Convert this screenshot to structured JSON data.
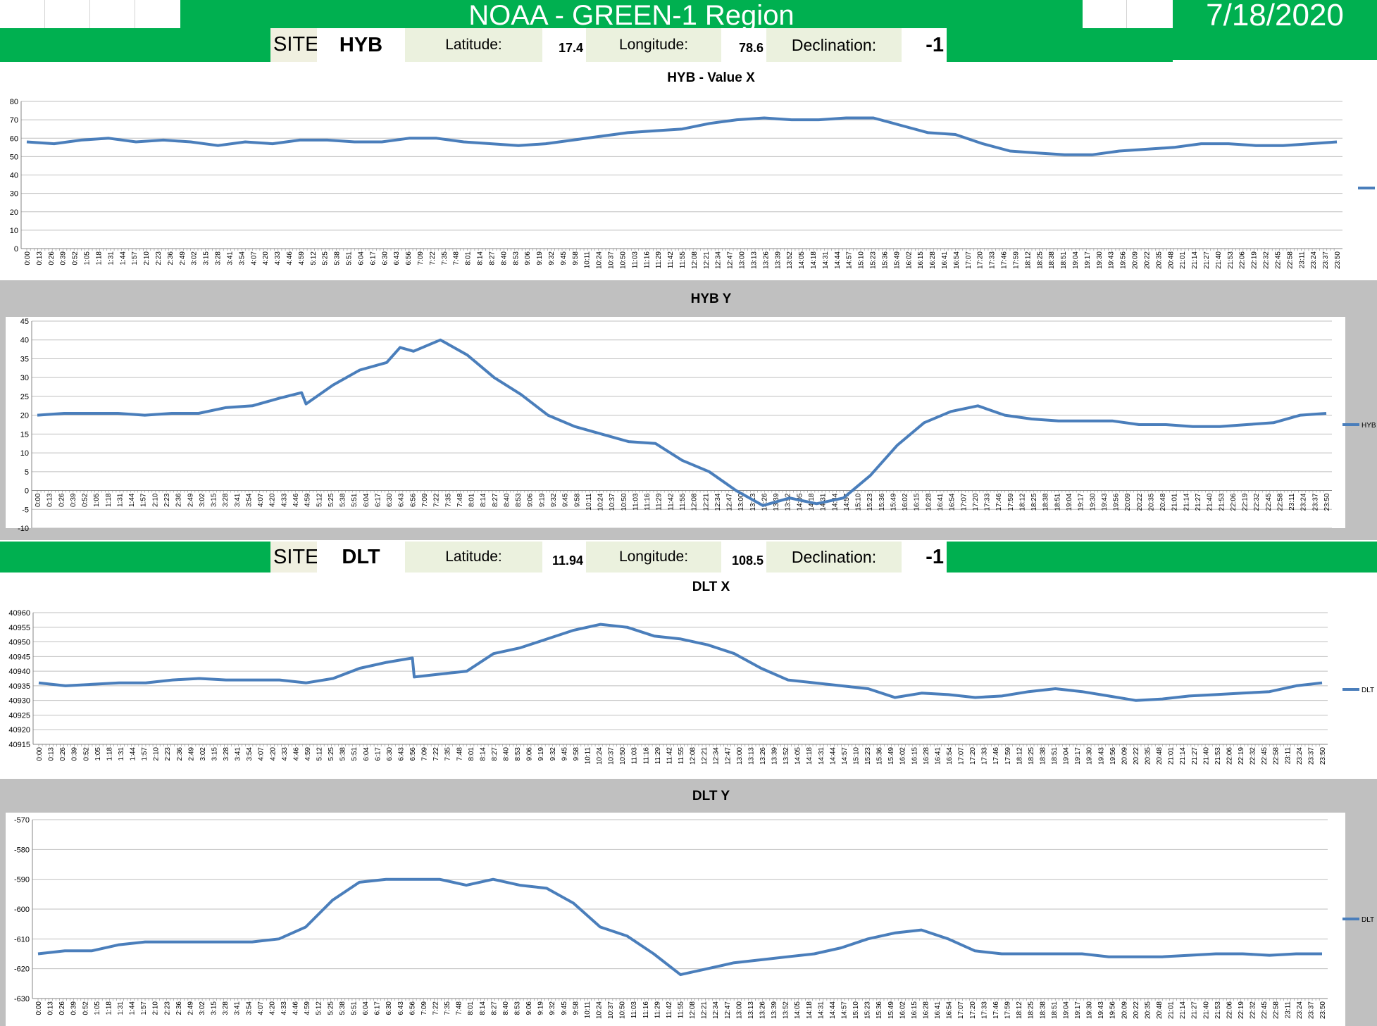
{
  "header": {
    "title": "NOAA - GREEN-1 Region",
    "date": "7/18/2020"
  },
  "sites": [
    {
      "site_label": "SITE:",
      "site": "HYB",
      "latitude_label": "Latitude:",
      "latitude": "17.4",
      "longitude_label": "Longitude:",
      "longitude": "78.6",
      "declination_label": "Declination:",
      "declination": "-1"
    },
    {
      "site_label": "SITE:",
      "site": "DLT",
      "latitude_label": "Latitude:",
      "latitude": "11.94",
      "longitude_label": "Longitude:",
      "longitude": "108.5",
      "declination_label": "Declination:",
      "declination": "-1"
    }
  ],
  "colors": {
    "banner_green": "#00b050",
    "series_blue": "#4a7ebb",
    "chart_area_gray": "#c0c0c0",
    "gridline": "#bfbfbf"
  },
  "chart_data": [
    {
      "type": "line",
      "title": "HYB - Value X",
      "ylim": [
        0,
        80
      ],
      "yticks": [
        0,
        10,
        20,
        30,
        40,
        50,
        60,
        70,
        80
      ],
      "grid": true,
      "legend": "right",
      "legend_label": "",
      "x_tick_labels": [
        "0:00",
        "0:13",
        "0:26",
        "0:39",
        "0:52",
        "1:05",
        "1:18",
        "1:31",
        "1:44",
        "1:57",
        "2:10",
        "2:23",
        "2:36",
        "2:49",
        "3:02",
        "3:15",
        "3:28",
        "3:41",
        "3:54",
        "4:07",
        "4:20",
        "4:33",
        "4:46",
        "4:59",
        "5:12",
        "5:25",
        "5:38",
        "5:51",
        "6:04",
        "6:17",
        "6:30",
        "6:43",
        "6:56",
        "7:09",
        "7:22",
        "7:35",
        "7:48",
        "8:01",
        "8:14",
        "8:27",
        "8:40",
        "8:53",
        "9:06",
        "9:19",
        "9:32",
        "9:45",
        "9:58",
        "10:11",
        "10:24",
        "10:37",
        "10:50",
        "11:03",
        "11:16",
        "11:29",
        "11:42",
        "11:55",
        "12:08",
        "12:21",
        "12:34",
        "12:47",
        "13:00",
        "13:13",
        "13:26",
        "13:39",
        "13:52",
        "14:05",
        "14:18",
        "14:31",
        "14:44",
        "14:57",
        "15:10",
        "15:23",
        "15:36",
        "15:49",
        "16:02",
        "16:15",
        "16:28",
        "16:41",
        "16:54",
        "17:07",
        "17:20",
        "17:33",
        "17:46",
        "17:59",
        "18:12",
        "18:25",
        "18:38",
        "18:51",
        "19:04",
        "19:17",
        "19:30",
        "19:43",
        "19:56",
        "20:09",
        "20:22",
        "20:35",
        "20:48",
        "21:01",
        "21:14",
        "21:27",
        "21:40",
        "21:53",
        "22:06",
        "22:19",
        "22:32",
        "22:45",
        "22:58",
        "23:11",
        "23:24",
        "23:37",
        "23:50"
      ],
      "series": [
        {
          "x": [
            "0:00",
            "0:30",
            "1:00",
            "1:30",
            "2:00",
            "2:30",
            "3:00",
            "3:30",
            "4:00",
            "4:30",
            "5:00",
            "5:30",
            "6:00",
            "6:30",
            "7:00",
            "7:30",
            "8:00",
            "8:30",
            "9:00",
            "9:30",
            "10:00",
            "10:30",
            "11:00",
            "11:30",
            "12:00",
            "12:30",
            "13:00",
            "13:30",
            "14:00",
            "14:30",
            "15:00",
            "15:30",
            "16:00",
            "16:30",
            "17:00",
            "17:30",
            "18:00",
            "18:30",
            "19:00",
            "19:30",
            "20:00",
            "20:30",
            "21:00",
            "21:30",
            "22:00",
            "22:30",
            "23:00",
            "23:30",
            "23:59"
          ],
          "values": [
            58,
            57,
            59,
            60,
            58,
            59,
            58,
            56,
            58,
            57,
            59,
            59,
            58,
            58,
            60,
            60,
            58,
            57,
            56,
            57,
            59,
            61,
            63,
            64,
            65,
            68,
            70,
            71,
            70,
            70,
            71,
            71,
            67,
            63,
            62,
            57,
            53,
            52,
            51,
            51,
            53,
            54,
            55,
            57,
            57,
            56,
            56,
            57,
            58
          ]
        }
      ]
    },
    {
      "type": "line",
      "title": "HYB Y",
      "ylim": [
        -10,
        45
      ],
      "yticks": [
        -10,
        -5,
        0,
        5,
        10,
        15,
        20,
        25,
        30,
        35,
        40,
        45
      ],
      "grid": true,
      "legend": "right",
      "legend_label": "HYB",
      "x_tick_labels": [
        "0:00",
        "0:13",
        "0:26",
        "0:39",
        "0:52",
        "1:05",
        "1:18",
        "1:31",
        "1:44",
        "1:57",
        "2:10",
        "2:23",
        "2:36",
        "2:49",
        "3:02",
        "3:15",
        "3:28",
        "3:41",
        "3:54",
        "4:07",
        "4:20",
        "4:33",
        "4:46",
        "4:59",
        "5:12",
        "5:25",
        "5:38",
        "5:51",
        "6:04",
        "6:17",
        "6:30",
        "6:43",
        "6:56",
        "7:09",
        "7:22",
        "7:35",
        "7:48",
        "8:01",
        "8:14",
        "8:27",
        "8:40",
        "8:53",
        "9:06",
        "9:19",
        "9:32",
        "9:45",
        "9:58",
        "10:11",
        "10:24",
        "10:37",
        "10:50",
        "11:03",
        "11:16",
        "11:29",
        "11:42",
        "11:55",
        "12:08",
        "12:21",
        "12:34",
        "12:47",
        "13:00",
        "13:13",
        "13:26",
        "13:39",
        "13:52",
        "14:05",
        "14:18",
        "14:31",
        "14:44",
        "14:57",
        "15:10",
        "15:23",
        "15:36",
        "15:49",
        "16:02",
        "16:15",
        "16:28",
        "16:41",
        "16:54",
        "17:07",
        "17:20",
        "17:33",
        "17:46",
        "17:59",
        "18:12",
        "18:25",
        "18:38",
        "18:51",
        "19:04",
        "19:17",
        "19:30",
        "19:43",
        "19:56",
        "20:09",
        "20:22",
        "20:35",
        "20:48",
        "21:01",
        "21:14",
        "21:27",
        "21:40",
        "21:53",
        "22:06",
        "22:19",
        "22:32",
        "22:45",
        "22:58",
        "23:11",
        "23:24",
        "23:37",
        "23:50"
      ],
      "series": [
        {
          "name": "HYB",
          "x": [
            "0:00",
            "0:30",
            "1:00",
            "1:30",
            "2:00",
            "2:30",
            "3:00",
            "3:30",
            "4:00",
            "4:30",
            "4:55",
            "5:00",
            "5:30",
            "6:00",
            "6:30",
            "6:45",
            "7:00",
            "7:30",
            "8:00",
            "8:30",
            "9:00",
            "9:30",
            "10:00",
            "10:30",
            "11:00",
            "11:30",
            "12:00",
            "12:30",
            "13:00",
            "13:30",
            "14:00",
            "14:30",
            "15:00",
            "15:30",
            "16:00",
            "16:30",
            "17:00",
            "17:30",
            "18:00",
            "18:30",
            "19:00",
            "19:30",
            "20:00",
            "20:30",
            "21:00",
            "21:30",
            "22:00",
            "22:30",
            "23:00",
            "23:30",
            "23:59"
          ],
          "values": [
            20,
            20.5,
            20.5,
            20.5,
            20,
            20.5,
            20.5,
            22,
            22.5,
            24.5,
            26,
            23,
            28,
            32,
            34,
            38,
            37,
            40,
            36,
            30,
            25.5,
            20,
            17,
            15,
            13,
            12.5,
            8,
            5,
            0,
            -4,
            -2,
            -3.5,
            -2,
            4,
            12,
            18,
            21,
            22.5,
            20,
            19,
            18.5,
            18.5,
            18.5,
            17.5,
            17.5,
            17,
            17,
            17.5,
            18,
            20,
            20.5
          ]
        }
      ]
    },
    {
      "type": "line",
      "title": "DLT X",
      "ylim": [
        40915,
        40960
      ],
      "yticks": [
        40915,
        40920,
        40925,
        40930,
        40935,
        40940,
        40945,
        40950,
        40955,
        40960
      ],
      "grid": true,
      "legend": "right",
      "legend_label": "DLT",
      "x_tick_labels": [
        "0:00",
        "0:13",
        "0:26",
        "0:39",
        "0:52",
        "1:05",
        "1:18",
        "1:31",
        "1:44",
        "1:57",
        "2:10",
        "2:23",
        "2:36",
        "2:49",
        "3:02",
        "3:15",
        "3:28",
        "3:41",
        "3:54",
        "4:07",
        "4:20",
        "4:33",
        "4:46",
        "4:59",
        "5:12",
        "5:25",
        "5:38",
        "5:51",
        "6:04",
        "6:17",
        "6:30",
        "6:43",
        "6:56",
        "7:09",
        "7:22",
        "7:35",
        "7:48",
        "8:01",
        "8:14",
        "8:27",
        "8:40",
        "8:53",
        "9:06",
        "9:19",
        "9:32",
        "9:45",
        "9:58",
        "10:11",
        "10:24",
        "10:37",
        "10:50",
        "11:03",
        "11:16",
        "11:29",
        "11:42",
        "11:55",
        "12:08",
        "12:21",
        "12:34",
        "12:47",
        "13:00",
        "13:13",
        "13:26",
        "13:39",
        "13:52",
        "14:05",
        "14:18",
        "14:31",
        "14:44",
        "14:57",
        "15:10",
        "15:23",
        "15:36",
        "15:49",
        "16:02",
        "16:15",
        "16:28",
        "16:41",
        "16:54",
        "17:07",
        "17:20",
        "17:33",
        "17:46",
        "17:59",
        "18:12",
        "18:25",
        "18:38",
        "18:51",
        "19:04",
        "19:17",
        "19:30",
        "19:43",
        "19:56",
        "20:09",
        "20:22",
        "20:35",
        "20:48",
        "21:01",
        "21:14",
        "21:27",
        "21:40",
        "21:53",
        "22:06",
        "22:19",
        "22:32",
        "22:45",
        "22:58",
        "23:11",
        "23:24",
        "23:37",
        "23:50"
      ],
      "series": [
        {
          "name": "DLT",
          "x": [
            "0:00",
            "0:30",
            "1:00",
            "1:30",
            "2:00",
            "2:30",
            "3:00",
            "3:30",
            "4:00",
            "4:30",
            "5:00",
            "5:30",
            "6:00",
            "6:30",
            "6:59",
            "7:01",
            "7:30",
            "8:00",
            "8:30",
            "9:00",
            "9:30",
            "10:00",
            "10:30",
            "11:00",
            "11:30",
            "12:00",
            "12:30",
            "13:00",
            "13:30",
            "14:00",
            "14:30",
            "15:00",
            "15:30",
            "16:00",
            "16:30",
            "17:00",
            "17:30",
            "18:00",
            "18:30",
            "19:00",
            "19:30",
            "20:00",
            "20:30",
            "21:00",
            "21:30",
            "22:00",
            "22:30",
            "23:00",
            "23:30",
            "23:59"
          ],
          "values": [
            40936,
            40935,
            40935.5,
            40936,
            40936,
            40937,
            40937.5,
            40937,
            40937,
            40937,
            40936,
            40937.5,
            40941,
            40943,
            40944.5,
            40938,
            40939,
            40940,
            40946,
            40948,
            40951,
            40954,
            40956,
            40955,
            40952,
            40951,
            40949,
            40946,
            40941,
            40937,
            40936,
            40935,
            40934,
            40931,
            40932.5,
            40932,
            40931,
            40931.5,
            40933,
            40934,
            40933,
            40931.5,
            40930,
            40930.5,
            40931.5,
            40932,
            40932.5,
            40933,
            40935,
            40936
          ]
        }
      ]
    },
    {
      "type": "line",
      "title": "DLT Y",
      "ylim": [
        -630,
        -570
      ],
      "yticks": [
        -630,
        -620,
        -610,
        -600,
        -590,
        -580,
        -570
      ],
      "grid": true,
      "legend": "right",
      "legend_label": "DLT",
      "x_tick_labels": [
        "0:00",
        "0:13",
        "0:26",
        "0:39",
        "0:52",
        "1:05",
        "1:18",
        "1:31",
        "1:44",
        "1:57",
        "2:10",
        "2:23",
        "2:36",
        "2:49",
        "3:02",
        "3:15",
        "3:28",
        "3:41",
        "3:54",
        "4:07",
        "4:20",
        "4:33",
        "4:46",
        "4:59",
        "5:12",
        "5:25",
        "5:38",
        "5:51",
        "6:04",
        "6:17",
        "6:30",
        "6:43",
        "6:56",
        "7:09",
        "7:22",
        "7:35",
        "7:48",
        "8:01",
        "8:14",
        "8:27",
        "8:40",
        "8:53",
        "9:06",
        "9:19",
        "9:32",
        "9:45",
        "9:58",
        "10:11",
        "10:24",
        "10:37",
        "10:50",
        "11:03",
        "11:16",
        "11:29",
        "11:42",
        "11:55",
        "12:08",
        "12:21",
        "12:34",
        "12:47",
        "13:00",
        "13:13",
        "13:26",
        "13:39",
        "13:52",
        "14:05",
        "14:18",
        "14:31",
        "14:44",
        "14:57",
        "15:10",
        "15:23",
        "15:36",
        "15:49",
        "16:02",
        "16:15",
        "16:28",
        "16:41",
        "16:54",
        "17:07",
        "17:20",
        "17:33",
        "17:46",
        "17:59",
        "18:12",
        "18:25",
        "18:38",
        "18:51",
        "19:04",
        "19:17",
        "19:30",
        "19:43",
        "19:56",
        "20:09",
        "20:22",
        "20:35",
        "20:48",
        "21:01",
        "21:14",
        "21:27",
        "21:40",
        "21:53",
        "22:06",
        "22:19",
        "22:32",
        "22:45",
        "22:58",
        "23:11",
        "23:24",
        "23:37",
        "23:50"
      ],
      "series": [
        {
          "name": "DLT",
          "x": [
            "0:00",
            "0:30",
            "1:00",
            "1:30",
            "2:00",
            "2:30",
            "3:00",
            "3:30",
            "4:00",
            "4:30",
            "5:00",
            "5:30",
            "6:00",
            "6:30",
            "7:00",
            "7:30",
            "8:00",
            "8:30",
            "9:00",
            "9:30",
            "10:00",
            "10:30",
            "11:00",
            "11:30",
            "12:00",
            "12:30",
            "13:00",
            "13:30",
            "14:00",
            "14:30",
            "15:00",
            "15:30",
            "16:00",
            "16:30",
            "17:00",
            "17:30",
            "18:00",
            "18:30",
            "19:00",
            "19:30",
            "20:00",
            "20:30",
            "21:00",
            "21:30",
            "22:00",
            "22:30",
            "23:00",
            "23:30",
            "23:59"
          ],
          "values": [
            -615,
            -614,
            -614,
            -612,
            -611,
            -611,
            -611,
            -611,
            -611,
            -610,
            -606,
            -597,
            -591,
            -590,
            -590,
            -590,
            -592,
            -590,
            -592,
            -593,
            -598,
            -606,
            -609,
            -615,
            -622,
            -620,
            -618,
            -617,
            -616,
            -615,
            -613,
            -610,
            -608,
            -607,
            -610,
            -614,
            -615,
            -615,
            -615,
            -615,
            -616,
            -616,
            -616,
            -615.5,
            -615,
            -615,
            -615.5,
            -615,
            -615
          ]
        }
      ]
    }
  ]
}
